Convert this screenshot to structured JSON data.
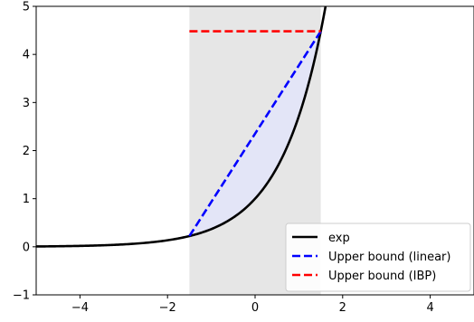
{
  "chart_data": {
    "type": "line",
    "xlim": [
      -5,
      5
    ],
    "ylim": [
      -1,
      5
    ],
    "xticks": [
      -4,
      -2,
      0,
      2,
      4
    ],
    "xtick_labels": [
      "−4",
      "−2",
      "0",
      "2",
      "4"
    ],
    "yticks": [
      -1,
      0,
      1,
      2,
      3,
      4,
      5
    ],
    "ytick_labels": [
      "−1",
      "0",
      "1",
      "2",
      "3",
      "4",
      "5"
    ],
    "grid": false,
    "legend_position": "lower-right",
    "shaded_interval": {
      "x": [
        -1.5,
        1.5
      ],
      "color": "#e6e6e6"
    },
    "shaded_region": {
      "description_free": true,
      "x": [
        -1.5,
        1.5
      ],
      "color": "#e3e5f7"
    },
    "series": [
      {
        "name": "exp",
        "function": "exp",
        "color": "#000000",
        "style": "solid",
        "x": [
          -5,
          -4.5,
          -4,
          -3.5,
          -3,
          -2.5,
          -2,
          -1.5,
          -1,
          -0.5,
          0,
          0.25,
          0.5,
          0.75,
          1.0,
          1.25,
          1.5,
          1.61
        ],
        "y": [
          0.0067,
          0.0111,
          0.0183,
          0.0302,
          0.0498,
          0.0821,
          0.1353,
          0.2231,
          0.3679,
          0.6065,
          1.0,
          1.284,
          1.6487,
          2.117,
          2.7183,
          3.4903,
          4.4817,
          5.0
        ]
      },
      {
        "name": "Upper bound (linear)",
        "color": "#0000ff",
        "style": "dashed",
        "x": [
          -1.5,
          1.5
        ],
        "y": [
          0.2231,
          4.4817
        ]
      },
      {
        "name": "Upper bound (IBP)",
        "color": "#ff0000",
        "style": "dashed",
        "x": [
          -1.5,
          1.5
        ],
        "y": [
          4.4817,
          4.4817
        ]
      }
    ]
  }
}
